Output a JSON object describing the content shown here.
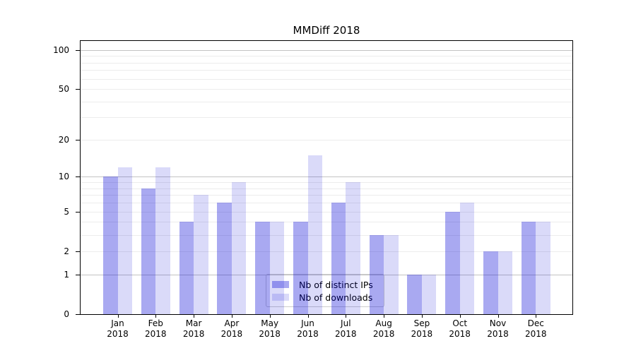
{
  "title": "MMDiff 2018",
  "chart_data": {
    "type": "bar",
    "title": "MMDiff 2018",
    "categories": [
      "Jan",
      "Feb",
      "Mar",
      "Apr",
      "May",
      "Jun",
      "Jul",
      "Aug",
      "Sep",
      "Oct",
      "Nov",
      "Dec"
    ],
    "category_year": "2018",
    "series": [
      {
        "name": "Nb of distinct IPs",
        "color": "#0a0ad7",
        "alpha": 0.35,
        "values": [
          10,
          8,
          4,
          6,
          4,
          4,
          6,
          3,
          1,
          5,
          2,
          4
        ]
      },
      {
        "name": "Nb of downloads",
        "color": "#0a0ad7",
        "alpha": 0.15,
        "values": [
          12,
          12,
          7,
          9,
          4,
          15,
          9,
          3,
          1,
          6,
          2,
          4
        ]
      }
    ],
    "xlabel": "",
    "ylabel": "",
    "y_scale": "log10(1+x)",
    "y_axis": {
      "ticks": [
        0,
        1,
        2,
        5,
        10,
        20,
        50,
        100
      ],
      "min": 0,
      "max": 117
    },
    "gridlines": {
      "major": [
        1,
        10,
        100
      ],
      "minor": [
        2,
        3,
        4,
        5,
        6,
        7,
        8,
        9,
        20,
        30,
        40,
        50,
        60,
        70,
        80,
        90
      ]
    },
    "legend": {
      "position": "lower-center"
    },
    "grid": true
  },
  "colors": {
    "background": "#ffffff",
    "axis": "#000000",
    "text": "#000000",
    "grid_major": "#c3c3c3",
    "grid_minor": "#ececec",
    "bar_ips_flat": "#a9a9f1",
    "bar_downloads_flat": "#dadaf9",
    "legend_border": "#cccccc"
  }
}
